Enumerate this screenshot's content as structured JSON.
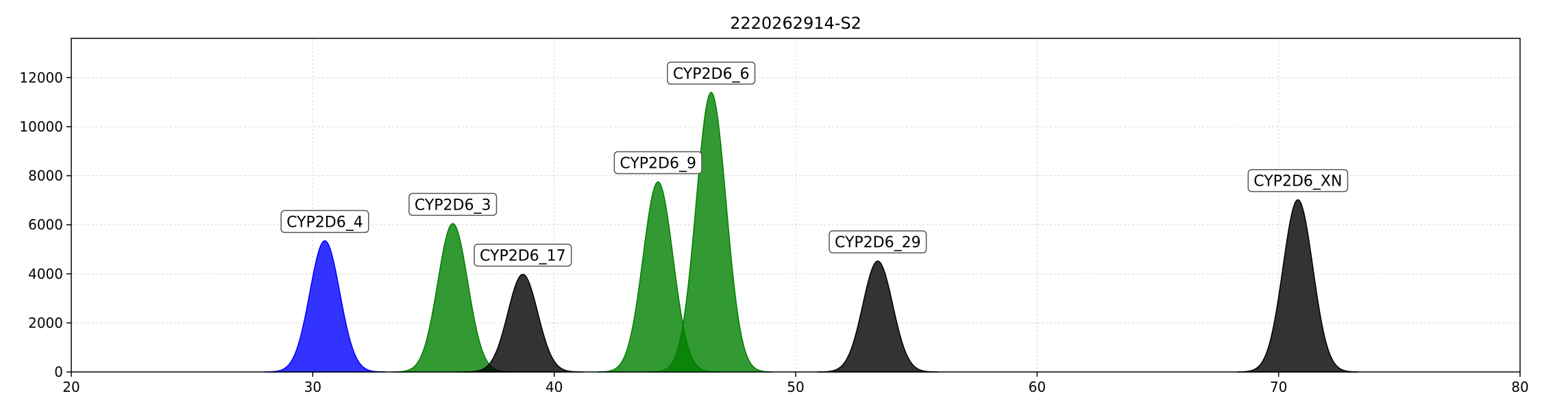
{
  "chart_data": {
    "type": "area",
    "title": "2220262914-S2",
    "xlabel": "",
    "ylabel": "",
    "xlim": [
      20,
      80
    ],
    "ylim": [
      0,
      13600
    ],
    "xticks": [
      20,
      30,
      40,
      50,
      60,
      70,
      80
    ],
    "yticks": [
      0,
      2000,
      4000,
      6000,
      8000,
      10000,
      12000
    ],
    "grid": true,
    "peaks": [
      {
        "name": "CYP2D6_4",
        "x": 30.5,
        "y": 5350,
        "sigma": 0.62,
        "color": "#0000ff"
      },
      {
        "name": "CYP2D6_3",
        "x": 35.8,
        "y": 6050,
        "sigma": 0.62,
        "color": "#008000"
      },
      {
        "name": "CYP2D6_17",
        "x": 38.7,
        "y": 3980,
        "sigma": 0.62,
        "color": "#000000"
      },
      {
        "name": "CYP2D6_9",
        "x": 44.3,
        "y": 7750,
        "sigma": 0.62,
        "color": "#008000"
      },
      {
        "name": "CYP2D6_6",
        "x": 46.5,
        "y": 11400,
        "sigma": 0.62,
        "color": "#008000"
      },
      {
        "name": "CYP2D6_29",
        "x": 53.4,
        "y": 4520,
        "sigma": 0.62,
        "color": "#000000"
      },
      {
        "name": "CYP2D6_XN",
        "x": 70.8,
        "y": 7020,
        "sigma": 0.62,
        "color": "#000000"
      }
    ]
  }
}
